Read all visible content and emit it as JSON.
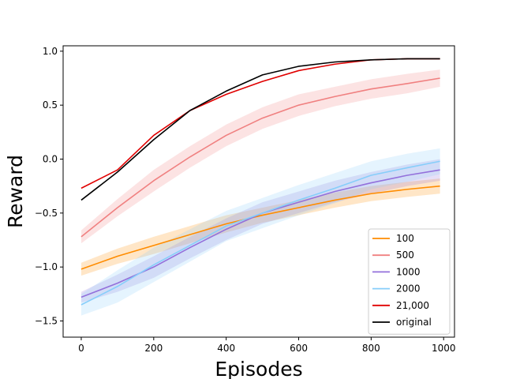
{
  "chart_data": {
    "type": "line",
    "title": "",
    "xlabel": "Episodes",
    "ylabel": "Reward",
    "xlim": [
      -50,
      1030
    ],
    "ylim": [
      -1.65,
      1.05
    ],
    "x_ticks": [
      0,
      200,
      400,
      600,
      800,
      1000
    ],
    "x_tick_labels": [
      "0",
      "200",
      "400",
      "600",
      "800",
      "1000"
    ],
    "y_ticks": [
      -1.5,
      -1.0,
      -0.5,
      0.0,
      0.5,
      1.0
    ],
    "y_tick_labels": [
      "−1.5",
      "−1.0",
      "−0.5",
      "0.0",
      "0.5",
      "1.0"
    ],
    "grid": false,
    "legend_position": "lower-right",
    "x": [
      0,
      100,
      200,
      300,
      400,
      500,
      600,
      700,
      800,
      900,
      990
    ],
    "series": [
      {
        "name": "100",
        "color": "#ff8c00",
        "values": [
          -1.02,
          -0.9,
          -0.8,
          -0.7,
          -0.6,
          -0.52,
          -0.45,
          -0.38,
          -0.32,
          -0.28,
          -0.25
        ],
        "spread": [
          0.06,
          0.07,
          0.08,
          0.08,
          0.08,
          0.07,
          0.07,
          0.07,
          0.07,
          0.07,
          0.07
        ]
      },
      {
        "name": "500",
        "color": "#f08080",
        "values": [
          -0.72,
          -0.45,
          -0.2,
          0.02,
          0.22,
          0.38,
          0.5,
          0.58,
          0.65,
          0.7,
          0.75
        ],
        "spread": [
          0.06,
          0.08,
          0.1,
          0.1,
          0.1,
          0.1,
          0.1,
          0.09,
          0.09,
          0.09,
          0.08
        ]
      },
      {
        "name": "1000",
        "color": "#9370db",
        "values": [
          -1.28,
          -1.15,
          -1.0,
          -0.82,
          -0.65,
          -0.5,
          -0.4,
          -0.3,
          -0.22,
          -0.15,
          -0.1
        ],
        "spread": [
          0.05,
          0.08,
          0.1,
          0.1,
          0.1,
          0.1,
          0.1,
          0.1,
          0.1,
          0.1,
          0.1
        ]
      },
      {
        "name": "2000",
        "color": "#87cefa",
        "values": [
          -1.35,
          -1.18,
          -0.98,
          -0.8,
          -0.62,
          -0.5,
          -0.38,
          -0.27,
          -0.15,
          -0.08,
          -0.02
        ],
        "spread": [
          0.1,
          0.15,
          0.16,
          0.15,
          0.14,
          0.14,
          0.14,
          0.14,
          0.13,
          0.13,
          0.12
        ]
      },
      {
        "name": "21,000",
        "color": "#e00000",
        "values": [
          -0.27,
          -0.1,
          0.22,
          0.45,
          0.6,
          0.72,
          0.82,
          0.88,
          0.92,
          0.93,
          0.93
        ],
        "spread": []
      },
      {
        "name": "original",
        "color": "#000000",
        "values": [
          -0.38,
          -0.12,
          0.18,
          0.45,
          0.63,
          0.78,
          0.86,
          0.9,
          0.92,
          0.93,
          0.93
        ],
        "spread": []
      }
    ]
  }
}
